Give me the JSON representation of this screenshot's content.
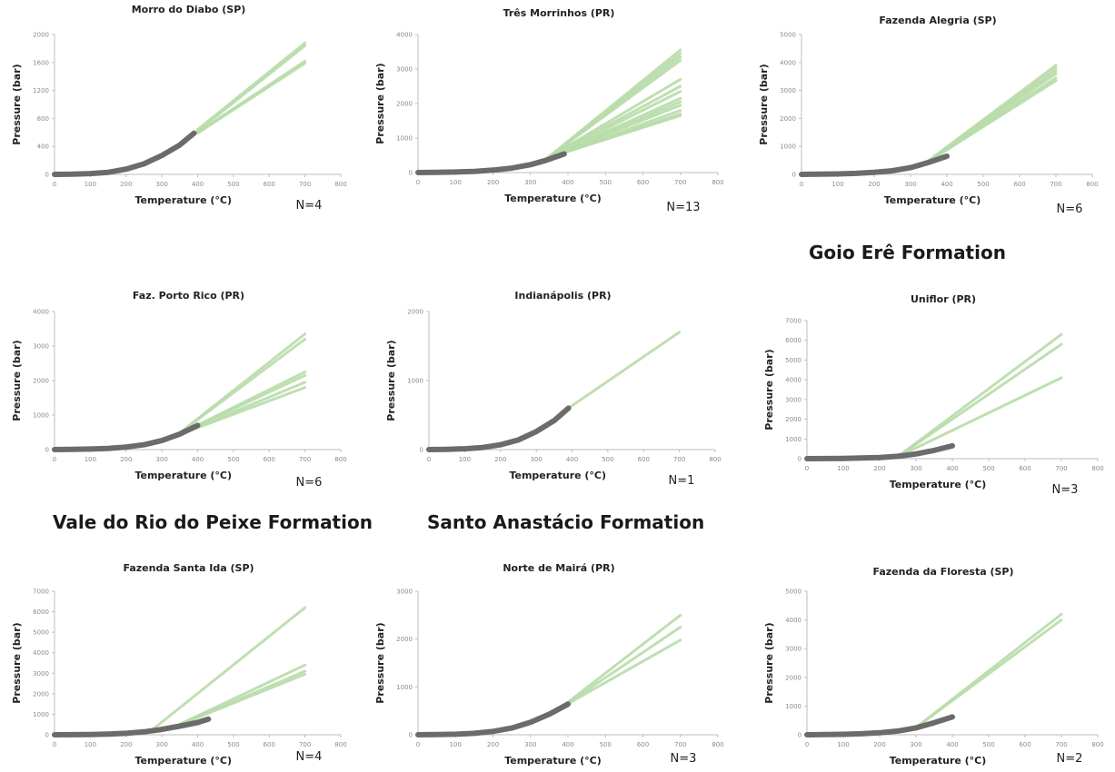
{
  "formations": {
    "goio_ere": "Goio Erê Formation",
    "vale_rio_peixe": "Vale do Rio do Peixe Formation",
    "santo_anastacio": "Santo Anastácio Formation"
  },
  "colors": {
    "isochore_dark": "#6b6b6b",
    "isochore_green": "#b8dcaa",
    "axis": "#bdbdbd"
  },
  "chart_data": [
    {
      "type": "line",
      "title": "Morro do Diabo (SP)",
      "xlabel": "Temperature (°C)",
      "ylabel": "Pressure (bar)",
      "n_label": "N=4",
      "xlim": [
        0,
        800
      ],
      "ylim": [
        0,
        2000
      ],
      "xticks": [
        0,
        100,
        200,
        300,
        400,
        500,
        600,
        700,
        800
      ],
      "yticks": [
        0,
        400,
        800,
        1200,
        1600,
        2000
      ],
      "x_tick_labels": [
        "0",
        "100",
        "200",
        "300",
        "400",
        "500",
        "600",
        "700",
        "800"
      ],
      "y_tick_labels": [
        "0",
        "400",
        "800",
        "1200",
        "1600",
        "2000"
      ],
      "legend": "none",
      "grid": false,
      "dark_curve": [
        [
          0,
          0
        ],
        [
          50,
          3
        ],
        [
          100,
          12
        ],
        [
          150,
          30
        ],
        [
          200,
          75
        ],
        [
          250,
          150
        ],
        [
          300,
          270
        ],
        [
          350,
          420
        ],
        [
          390,
          590
        ]
      ],
      "green_lines": [
        [
          [
            400,
            640
          ],
          [
            700,
            1880
          ]
        ],
        [
          [
            400,
            620
          ],
          [
            700,
            1840
          ]
        ],
        [
          [
            400,
            600
          ],
          [
            700,
            1620
          ]
        ],
        [
          [
            400,
            590
          ],
          [
            700,
            1590
          ]
        ]
      ]
    },
    {
      "type": "line",
      "title": "Três Morrinhos (PR)",
      "xlabel": "Temperature (°C)",
      "ylabel": "Pressure (bar)",
      "n_label": "N=13",
      "xlim": [
        0,
        800
      ],
      "ylim": [
        0,
        4000
      ],
      "xticks": [
        0,
        100,
        200,
        300,
        400,
        500,
        600,
        700,
        800
      ],
      "yticks": [
        0,
        1000,
        2000,
        3000,
        4000
      ],
      "x_tick_labels": [
        "0",
        "100",
        "200",
        "300",
        "400",
        "500",
        "600",
        "700",
        "800"
      ],
      "y_tick_labels": [
        "0",
        "1000",
        "2000",
        "3000",
        "4000"
      ],
      "legend": "none",
      "grid": false,
      "dark_curve": [
        [
          0,
          0
        ],
        [
          50,
          5
        ],
        [
          100,
          15
        ],
        [
          150,
          35
        ],
        [
          200,
          70
        ],
        [
          250,
          130
        ],
        [
          300,
          230
        ],
        [
          340,
          350
        ],
        [
          390,
          540
        ]
      ],
      "green_lines": [
        [
          [
            345,
            420
          ],
          [
            700,
            3550
          ]
        ],
        [
          [
            345,
            420
          ],
          [
            700,
            3450
          ]
        ],
        [
          [
            345,
            420
          ],
          [
            700,
            3350
          ]
        ],
        [
          [
            345,
            420
          ],
          [
            700,
            3250
          ]
        ],
        [
          [
            345,
            420
          ],
          [
            700,
            2700
          ]
        ],
        [
          [
            345,
            420
          ],
          [
            700,
            2500
          ]
        ],
        [
          [
            345,
            420
          ],
          [
            700,
            2350
          ]
        ],
        [
          [
            345,
            420
          ],
          [
            700,
            2150
          ]
        ],
        [
          [
            345,
            420
          ],
          [
            700,
            2050
          ]
        ],
        [
          [
            345,
            420
          ],
          [
            700,
            1950
          ]
        ],
        [
          [
            345,
            420
          ],
          [
            700,
            1800
          ]
        ],
        [
          [
            345,
            420
          ],
          [
            700,
            1700
          ]
        ],
        [
          [
            345,
            420
          ],
          [
            700,
            1650
          ]
        ]
      ]
    },
    {
      "type": "line",
      "title": "Fazenda Alegria (SP)",
      "xlabel": "Temperature (°C)",
      "ylabel": "Pressure (bar)",
      "n_label": "N=6",
      "xlim": [
        0,
        800
      ],
      "ylim": [
        0,
        5000
      ],
      "xticks": [
        0,
        100,
        200,
        300,
        400,
        500,
        600,
        700,
        800
      ],
      "yticks": [
        0,
        1000,
        2000,
        3000,
        4000,
        5000
      ],
      "x_tick_labels": [
        "0",
        "100",
        "200",
        "300",
        "400",
        "500",
        "600",
        "700",
        "800"
      ],
      "y_tick_labels": [
        "0",
        "1000",
        "2000",
        "3000",
        "4000",
        "5000"
      ],
      "legend": "none",
      "grid": false,
      "dark_curve": [
        [
          0,
          0
        ],
        [
          50,
          5
        ],
        [
          100,
          15
        ],
        [
          150,
          35
        ],
        [
          200,
          70
        ],
        [
          250,
          130
        ],
        [
          300,
          240
        ],
        [
          350,
          430
        ],
        [
          400,
          650
        ]
      ],
      "green_lines": [
        [
          [
            330,
            300
          ],
          [
            700,
            3900
          ]
        ],
        [
          [
            330,
            300
          ],
          [
            700,
            3800
          ]
        ],
        [
          [
            330,
            300
          ],
          [
            700,
            3700
          ]
        ],
        [
          [
            330,
            300
          ],
          [
            700,
            3600
          ]
        ],
        [
          [
            330,
            300
          ],
          [
            700,
            3450
          ]
        ],
        [
          [
            330,
            300
          ],
          [
            700,
            3350
          ]
        ]
      ]
    },
    {
      "type": "line",
      "title": "Faz. Porto Rico (PR)",
      "xlabel": "Temperature (°C)",
      "ylabel": "Pressure (bar)",
      "n_label": "N=6",
      "xlim": [
        0,
        800
      ],
      "ylim": [
        0,
        4000
      ],
      "xticks": [
        0,
        100,
        200,
        300,
        400,
        500,
        600,
        700,
        800
      ],
      "yticks": [
        0,
        1000,
        2000,
        3000,
        4000
      ],
      "x_tick_labels": [
        "0",
        "100",
        "200",
        "300",
        "400",
        "500",
        "600",
        "700",
        "800"
      ],
      "y_tick_labels": [
        "0",
        "1000",
        "2000",
        "3000",
        "4000"
      ],
      "legend": "none",
      "grid": false,
      "dark_curve": [
        [
          0,
          0
        ],
        [
          50,
          5
        ],
        [
          100,
          15
        ],
        [
          150,
          35
        ],
        [
          200,
          75
        ],
        [
          250,
          140
        ],
        [
          300,
          260
        ],
        [
          350,
          450
        ],
        [
          400,
          700
        ]
      ],
      "green_lines": [
        [
          [
            340,
            400
          ],
          [
            700,
            3350
          ]
        ],
        [
          [
            340,
            400
          ],
          [
            700,
            3200
          ]
        ],
        [
          [
            340,
            400
          ],
          [
            700,
            2250
          ]
        ],
        [
          [
            340,
            400
          ],
          [
            700,
            2150
          ]
        ],
        [
          [
            340,
            400
          ],
          [
            700,
            1950
          ]
        ],
        [
          [
            340,
            400
          ],
          [
            700,
            1800
          ]
        ]
      ]
    },
    {
      "type": "line",
      "title": "Indianápolis (PR)",
      "xlabel": "Temperature (°C)",
      "ylabel": "Pressure (bar)",
      "n_label": "N=1",
      "xlim": [
        0,
        800
      ],
      "ylim": [
        0,
        2000
      ],
      "xticks": [
        0,
        100,
        200,
        300,
        400,
        500,
        600,
        700,
        800
      ],
      "yticks": [
        0,
        1000,
        2000
      ],
      "x_tick_labels": [
        "0",
        "100",
        "200",
        "300",
        "400",
        "500",
        "600",
        "700",
        "800"
      ],
      "y_tick_labels": [
        "0",
        "1000",
        "2000"
      ],
      "legend": "none",
      "grid": false,
      "dark_curve": [
        [
          0,
          0
        ],
        [
          50,
          4
        ],
        [
          100,
          12
        ],
        [
          150,
          30
        ],
        [
          200,
          70
        ],
        [
          250,
          140
        ],
        [
          300,
          260
        ],
        [
          350,
          420
        ],
        [
          390,
          600
        ]
      ],
      "green_lines": [
        [
          [
            390,
            600
          ],
          [
            700,
            1700
          ]
        ]
      ]
    },
    {
      "type": "line",
      "title": "Uniflor (PR)",
      "xlabel": "Temperature (°C)",
      "ylabel": "Pressure (bar)",
      "n_label": "N=3",
      "xlim": [
        0,
        800
      ],
      "ylim": [
        0,
        7000
      ],
      "xticks": [
        0,
        100,
        200,
        300,
        400,
        500,
        600,
        700,
        800
      ],
      "yticks": [
        0,
        1000,
        2000,
        3000,
        4000,
        5000,
        6000,
        7000
      ],
      "x_tick_labels": [
        "0",
        "100",
        "200",
        "300",
        "400",
        "500",
        "600",
        "700",
        "800"
      ],
      "y_tick_labels": [
        "0",
        "1000",
        "2000",
        "3000",
        "4000",
        "5000",
        "6000",
        "7000"
      ],
      "legend": "none",
      "grid": false,
      "dark_curve": [
        [
          0,
          0
        ],
        [
          50,
          4
        ],
        [
          100,
          12
        ],
        [
          150,
          30
        ],
        [
          200,
          60
        ],
        [
          250,
          120
        ],
        [
          300,
          240
        ],
        [
          350,
          420
        ],
        [
          400,
          650
        ]
      ],
      "green_lines": [
        [
          [
            250,
            100
          ],
          [
            700,
            6300
          ]
        ],
        [
          [
            250,
            100
          ],
          [
            700,
            5800
          ]
        ],
        [
          [
            250,
            100
          ],
          [
            700,
            4100
          ]
        ]
      ]
    },
    {
      "type": "line",
      "title": "Fazenda Santa Ida (SP)",
      "xlabel": "Temperature (°C)",
      "ylabel": "Pressure (bar)",
      "n_label": "N=4",
      "xlim": [
        0,
        800
      ],
      "ylim": [
        0,
        7000
      ],
      "xticks": [
        0,
        100,
        200,
        300,
        400,
        500,
        600,
        700,
        800
      ],
      "yticks": [
        0,
        1000,
        2000,
        3000,
        4000,
        5000,
        6000,
        7000
      ],
      "x_tick_labels": [
        "0",
        "100",
        "200",
        "300",
        "400",
        "500",
        "600",
        "700",
        "800"
      ],
      "y_tick_labels": [
        "0",
        "1000",
        "2000",
        "3000",
        "4000",
        "5000",
        "6000",
        "7000"
      ],
      "legend": "none",
      "grid": false,
      "dark_curve": [
        [
          0,
          0
        ],
        [
          50,
          5
        ],
        [
          100,
          15
        ],
        [
          150,
          35
        ],
        [
          200,
          70
        ],
        [
          250,
          140
        ],
        [
          300,
          260
        ],
        [
          350,
          420
        ],
        [
          400,
          600
        ],
        [
          430,
          760
        ]
      ],
      "green_lines": [
        [
          [
            270,
            200
          ],
          [
            700,
            6200
          ]
        ],
        [
          [
            330,
            350
          ],
          [
            700,
            3400
          ]
        ],
        [
          [
            330,
            350
          ],
          [
            700,
            3100
          ]
        ],
        [
          [
            330,
            350
          ],
          [
            700,
            2950
          ]
        ]
      ]
    },
    {
      "type": "line",
      "title": "Norte de Mairá (PR)",
      "xlabel": "Temperature (°C)",
      "ylabel": "Pressure (bar)",
      "n_label": "N=3",
      "xlim": [
        0,
        800
      ],
      "ylim": [
        0,
        3000
      ],
      "xticks": [
        0,
        100,
        200,
        300,
        400,
        500,
        600,
        700,
        800
      ],
      "yticks": [
        0,
        1000,
        2000,
        3000
      ],
      "x_tick_labels": [
        "0",
        "100",
        "200",
        "300",
        "400",
        "500",
        "600",
        "700",
        "800"
      ],
      "y_tick_labels": [
        "0",
        "1000",
        "2000",
        "3000"
      ],
      "legend": "none",
      "grid": false,
      "dark_curve": [
        [
          0,
          0
        ],
        [
          50,
          4
        ],
        [
          100,
          12
        ],
        [
          150,
          30
        ],
        [
          200,
          70
        ],
        [
          250,
          140
        ],
        [
          300,
          260
        ],
        [
          350,
          430
        ],
        [
          400,
          640
        ]
      ],
      "green_lines": [
        [
          [
            380,
            560
          ],
          [
            700,
            2500
          ]
        ],
        [
          [
            380,
            560
          ],
          [
            700,
            2250
          ]
        ],
        [
          [
            380,
            560
          ],
          [
            700,
            1980
          ]
        ]
      ]
    },
    {
      "type": "line",
      "title": "Fazenda da Floresta (SP)",
      "xlabel": "Temperature (°C)",
      "ylabel": "Pressure (bar)",
      "n_label": "N=2",
      "xlim": [
        0,
        800
      ],
      "ylim": [
        0,
        5000
      ],
      "xticks": [
        0,
        100,
        200,
        300,
        400,
        500,
        600,
        700,
        800
      ],
      "yticks": [
        0,
        1000,
        2000,
        3000,
        4000,
        5000
      ],
      "x_tick_labels": [
        "0",
        "100",
        "200",
        "300",
        "400",
        "500",
        "600",
        "700",
        "800"
      ],
      "y_tick_labels": [
        "0",
        "1000",
        "2000",
        "3000",
        "4000",
        "5000"
      ],
      "legend": "none",
      "grid": false,
      "dark_curve": [
        [
          0,
          0
        ],
        [
          50,
          5
        ],
        [
          100,
          15
        ],
        [
          150,
          35
        ],
        [
          200,
          70
        ],
        [
          250,
          130
        ],
        [
          300,
          240
        ],
        [
          350,
          420
        ],
        [
          400,
          620
        ]
      ],
      "green_lines": [
        [
          [
            300,
            250
          ],
          [
            700,
            4200
          ]
        ],
        [
          [
            300,
            250
          ],
          [
            700,
            4000
          ]
        ]
      ]
    }
  ]
}
